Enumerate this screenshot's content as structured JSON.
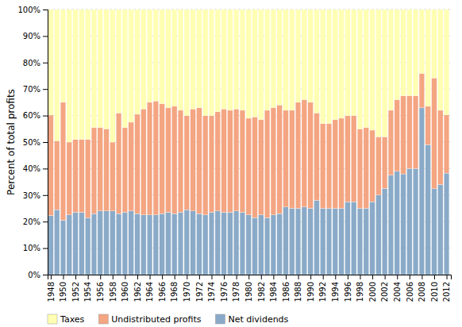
{
  "chart_data": {
    "type": "bar",
    "stacked": true,
    "y_label": "Percent of total profits",
    "x": [
      1948,
      1949,
      1950,
      1951,
      1952,
      1953,
      1954,
      1955,
      1956,
      1957,
      1958,
      1959,
      1960,
      1961,
      1962,
      1963,
      1964,
      1965,
      1966,
      1967,
      1968,
      1969,
      1970,
      1971,
      1972,
      1973,
      1974,
      1975,
      1976,
      1977,
      1978,
      1979,
      1980,
      1981,
      1982,
      1983,
      1984,
      1985,
      1986,
      1987,
      1988,
      1989,
      1990,
      1991,
      1992,
      1993,
      1994,
      1995,
      1996,
      1997,
      1998,
      1999,
      2000,
      2001,
      2002,
      2003,
      2004,
      2005,
      2006,
      2007,
      2008,
      2009,
      2010,
      2011,
      2012
    ],
    "series": [
      {
        "name": "Net dividends",
        "color": "#8aaac8",
        "values": [
          22.3,
          24.5,
          20.5,
          22.5,
          23.5,
          23.5,
          21.5,
          23.0,
          24.0,
          24.0,
          24.0,
          23.0,
          23.5,
          24.0,
          23.0,
          22.5,
          22.5,
          22.5,
          23.0,
          23.5,
          23.0,
          23.5,
          24.5,
          24.0,
          23.0,
          22.5,
          23.5,
          24.0,
          23.5,
          23.5,
          24.0,
          23.5,
          22.5,
          21.5,
          22.5,
          21.5,
          22.5,
          23.0,
          25.5,
          25.0,
          25.0,
          25.5,
          25.0,
          28.0,
          25.0,
          25.0,
          25.0,
          25.0,
          27.5,
          27.5,
          25.0,
          25.0,
          27.5,
          30.0,
          32.5,
          37.5,
          39.0,
          38.0,
          40.0,
          40.0,
          62.9,
          49.0,
          32.4,
          34.0,
          38.3
        ]
      },
      {
        "name": "Undistributed profits",
        "color": "#f4a582",
        "values": [
          37.9,
          26.0,
          44.5,
          27.5,
          27.5,
          27.5,
          29.5,
          32.5,
          31.5,
          31.0,
          26.0,
          38.0,
          32.0,
          33.5,
          37.5,
          40.0,
          42.5,
          43.0,
          41.5,
          39.5,
          40.5,
          38.5,
          35.5,
          38.5,
          40.0,
          37.5,
          36.5,
          37.5,
          39.0,
          38.5,
          38.5,
          38.5,
          36.5,
          38.0,
          36.0,
          40.5,
          40.5,
          41.0,
          36.5,
          37.0,
          40.0,
          40.5,
          40.0,
          33.0,
          32.0,
          32.0,
          33.5,
          34.0,
          32.5,
          32.5,
          30.0,
          30.5,
          27.0,
          22.0,
          19.5,
          24.5,
          27.0,
          29.5,
          27.5,
          27.5,
          13.0,
          14.5,
          41.8,
          28.0,
          22.0
        ]
      },
      {
        "name": "Taxes",
        "color": "#ffffb3",
        "values": [
          39.8,
          49.5,
          35.0,
          50.0,
          49.0,
          49.0,
          49.0,
          44.5,
          44.5,
          45.0,
          50.0,
          39.0,
          44.5,
          42.5,
          39.5,
          37.5,
          35.0,
          34.5,
          35.5,
          37.0,
          36.5,
          38.0,
          40.0,
          37.5,
          37.0,
          40.0,
          40.0,
          38.5,
          37.5,
          38.0,
          37.5,
          38.0,
          41.0,
          40.5,
          41.5,
          38.0,
          37.0,
          36.0,
          38.0,
          38.0,
          35.0,
          34.0,
          35.0,
          39.0,
          43.0,
          43.0,
          41.5,
          41.0,
          40.0,
          40.0,
          45.0,
          44.5,
          45.5,
          48.0,
          48.0,
          38.0,
          34.0,
          32.5,
          32.5,
          32.5,
          24.1,
          36.5,
          25.8,
          38.0,
          39.7
        ]
      }
    ],
    "xlim": [
      1947.5,
      2012.7
    ],
    "xticks": [
      1948,
      1950,
      1952,
      1954,
      1956,
      1958,
      1960,
      1962,
      1964,
      1966,
      1968,
      1970,
      1972,
      1974,
      1976,
      1978,
      1980,
      1982,
      1984,
      1986,
      1988,
      1990,
      1992,
      1994,
      1996,
      1998,
      2000,
      2002,
      2004,
      2006,
      2008,
      2010,
      2012
    ],
    "ylim": [
      0,
      100
    ],
    "yticks": [
      {
        "value": 0,
        "label": "0%"
      },
      {
        "value": 10,
        "label": "10%"
      },
      {
        "value": 20,
        "label": "20%"
      },
      {
        "value": 30,
        "label": "30%"
      },
      {
        "value": 40,
        "label": "40%"
      },
      {
        "value": 50,
        "label": "50%"
      },
      {
        "value": 60,
        "label": "60%"
      },
      {
        "value": 70,
        "label": "70%"
      },
      {
        "value": 80,
        "label": "80%"
      },
      {
        "value": 90,
        "label": "90%"
      },
      {
        "value": 100,
        "label": "100%"
      }
    ],
    "grid": true,
    "legend": "lower left"
  }
}
